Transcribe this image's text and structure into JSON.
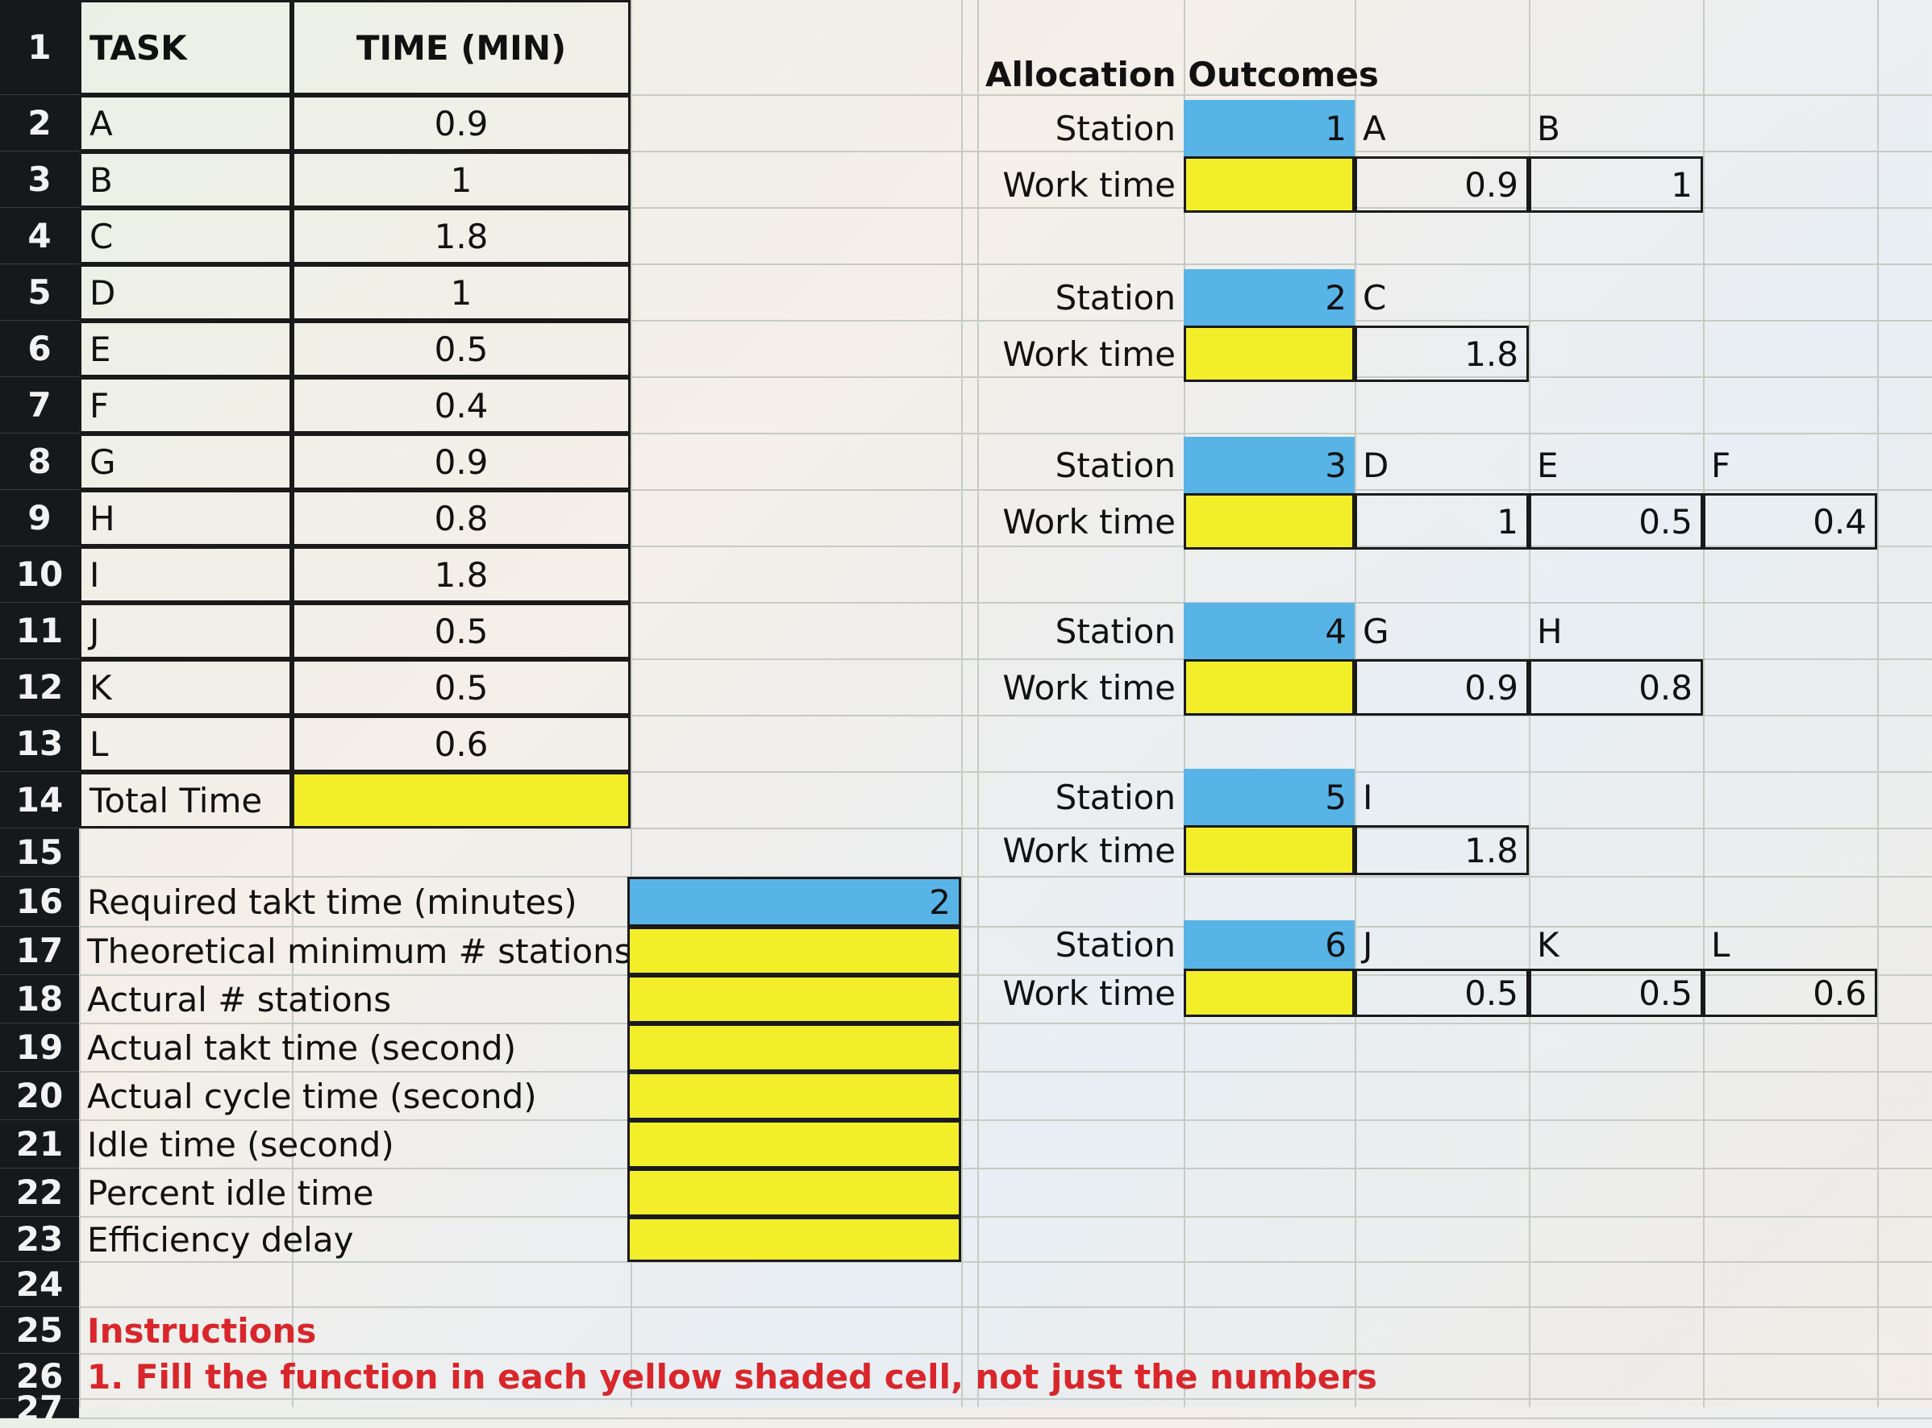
{
  "rows": [
    "1",
    "2",
    "3",
    "4",
    "5",
    "6",
    "7",
    "8",
    "9",
    "10",
    "11",
    "12",
    "13",
    "14",
    "15",
    "16",
    "17",
    "18",
    "19",
    "20",
    "21",
    "22",
    "23",
    "24",
    "25",
    "26",
    "27"
  ],
  "task_table": {
    "header_task": "TASK",
    "header_time": "TIME (MIN)",
    "tasks": [
      {
        "task": "A",
        "time": "0.9"
      },
      {
        "task": "B",
        "time": "1"
      },
      {
        "task": "C",
        "time": "1.8"
      },
      {
        "task": "D",
        "time": "1"
      },
      {
        "task": "E",
        "time": "0.5"
      },
      {
        "task": "F",
        "time": "0.4"
      },
      {
        "task": "G",
        "time": "0.9"
      },
      {
        "task": "H",
        "time": "0.8"
      },
      {
        "task": "I",
        "time": "1.8"
      },
      {
        "task": "J",
        "time": "0.5"
      },
      {
        "task": "K",
        "time": "0.5"
      },
      {
        "task": "L",
        "time": "0.6"
      }
    ],
    "total_label": "Total Time",
    "total_value": ""
  },
  "metrics": [
    {
      "label": "Required takt time (minutes)",
      "value": "2",
      "color": "#58b4e6"
    },
    {
      "label": "Theoretical minimum # stations",
      "value": "",
      "color": "#f3ee2a"
    },
    {
      "label": "Actural # stations",
      "value": "",
      "color": "#f3ee2a"
    },
    {
      "label": "Actual takt time (second)",
      "value": "",
      "color": "#f3ee2a"
    },
    {
      "label": "Actual cycle time (second)",
      "value": "",
      "color": "#f3ee2a"
    },
    {
      "label": "Idle time (second)",
      "value": "",
      "color": "#f3ee2a"
    },
    {
      "label": "Percent idle time",
      "value": "",
      "color": "#f3ee2a"
    },
    {
      "label": "Efficiency delay",
      "value": "",
      "color": "#f3ee2a"
    }
  ],
  "allocation": {
    "title": "Allocation Outcomes",
    "station_label": "Station",
    "worktime_label": "Work time",
    "stations": [
      {
        "num": "1",
        "tasks": [
          "A",
          "B"
        ],
        "times": [
          "0.9",
          "1"
        ]
      },
      {
        "num": "2",
        "tasks": [
          "C"
        ],
        "times": [
          "1.8"
        ]
      },
      {
        "num": "3",
        "tasks": [
          "D",
          "E",
          "F"
        ],
        "times": [
          "1",
          "0.5",
          "0.4"
        ]
      },
      {
        "num": "4",
        "tasks": [
          "G",
          "H"
        ],
        "times": [
          "0.9",
          "0.8"
        ]
      },
      {
        "num": "5",
        "tasks": [
          "I"
        ],
        "times": [
          "1.8"
        ]
      },
      {
        "num": "6",
        "tasks": [
          "J",
          "K",
          "L"
        ],
        "times": [
          "0.5",
          "0.5",
          "0.6"
        ]
      }
    ]
  },
  "instructions": {
    "title": "Instructions",
    "line1": "1. Fill the function in each yellow shaded cell, not just the numbers"
  },
  "colors": {
    "yellow": "#f3ee2a",
    "blue": "#58b4e6",
    "instruction_red": "#d8262b"
  }
}
